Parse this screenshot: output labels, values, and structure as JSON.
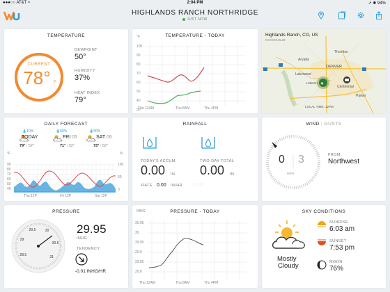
{
  "status": {
    "carrier": "●●●○○ AT&T ≈",
    "time": "2:04 PM",
    "battery": "➚ ✱ 94%"
  },
  "header": {
    "location": "HIGHLANDS RANCH NORTHRIDGE",
    "updated": "JUST NOW"
  },
  "temperature": {
    "title": "TEMPERATURE",
    "current_label": "CURRENT",
    "current_value": "78°",
    "unit": "F",
    "dewpoint_label": "DEWPOINT",
    "dewpoint": "50°",
    "humidity_label": "HUMIDITY",
    "humidity": "37%",
    "heat_index_label": "HEAT INDEX",
    "heat_index": "79°"
  },
  "temp_today": {
    "title": "TEMPERATURE - TODAY",
    "unit": "°F",
    "y_ticks": [
      "100",
      "90",
      "80",
      "70",
      "60",
      "50",
      "40",
      "30"
    ],
    "x_ticks": [
      "Thu 12AM",
      "Thu 8AM",
      "Thu 4PM"
    ]
  },
  "map": {
    "location": "Highlands Ranch, CO, US",
    "station": "KCOHIGHL29",
    "local_time": "LOCAL TIME: 12PM",
    "places": [
      "Thornton",
      "Arvada",
      "DENVER",
      "Lakewood",
      "Centennial",
      "Littleton",
      "Parker"
    ]
  },
  "daily": {
    "title": "DAILY FORECAST",
    "days": [
      {
        "precip": "10%",
        "name": "TODAY",
        "date": "",
        "high": "79°",
        "low": "52°"
      },
      {
        "precip": "50%",
        "name": "FRI",
        "date": "05",
        "high": "71°",
        "low": "52°"
      },
      {
        "precip": "50%",
        "name": "SAT",
        "date": "06",
        "high": "73°",
        "low": "52°"
      }
    ],
    "unit_f": "°F",
    "unit_pct": "%",
    "y_ticks": [
      "90",
      "80",
      "70",
      "60",
      "50",
      "40"
    ],
    "y_ticks_right": [
      "100",
      "50",
      "0"
    ],
    "x_ticks": [
      "Thu 12P",
      "Fri 12P",
      "Sat 12P"
    ]
  },
  "rainfall": {
    "title": "RAINFALL",
    "today_label": "TODAY'S ACCUM.",
    "today_value": "0.00",
    "today_unit": "IN.",
    "twoday_label": "TWO-DAY TOTAL",
    "twoday_value": "0.00",
    "twoday_unit": "IN.",
    "rate_label": "RATE",
    "rate_value": "0.00",
    "rate_unit": "IN/HR"
  },
  "wind": {
    "title": "WIND",
    "gusts_label": "GUSTS",
    "speed": "0",
    "gusts": "3",
    "unit": "MPH",
    "from_label": "FROM",
    "direction": "Northwest"
  },
  "pressure": {
    "title": "PRESSURE",
    "value": "29.95",
    "unit": "INHG",
    "tendency_label": "TENDENCY",
    "tendency": "-0.01 INHG/HR",
    "dial_labels": [
      "28.5",
      "29",
      "29.5",
      "30",
      "30.5",
      "31"
    ]
  },
  "pressure_today": {
    "title": "PRESSURE - TODAY",
    "unit": "INHG",
    "y_ticks": [
      "30.05",
      "30",
      "29.95",
      "29.9",
      "29.85",
      "29.8"
    ],
    "x_ticks": [
      "Thu 12AM",
      "Thu 8AM",
      "Thu 4PM"
    ]
  },
  "sky": {
    "title": "SKY CONDITIONS",
    "condition_line1": "Mostly",
    "condition_line2": "Cloudy",
    "sunrise_label": "SUNRISE",
    "sunrise": "6:03 am",
    "sunset_label": "SUNSET",
    "sunset": "7:53 pm",
    "moon_label": "MOON",
    "moon": "76%"
  },
  "colors": {
    "accent": "#f28a2e",
    "high_line": "#d84a4a",
    "low_line": "#4caf50",
    "precip": "#2f9fdc",
    "map_pin": "#2e7d32"
  }
}
